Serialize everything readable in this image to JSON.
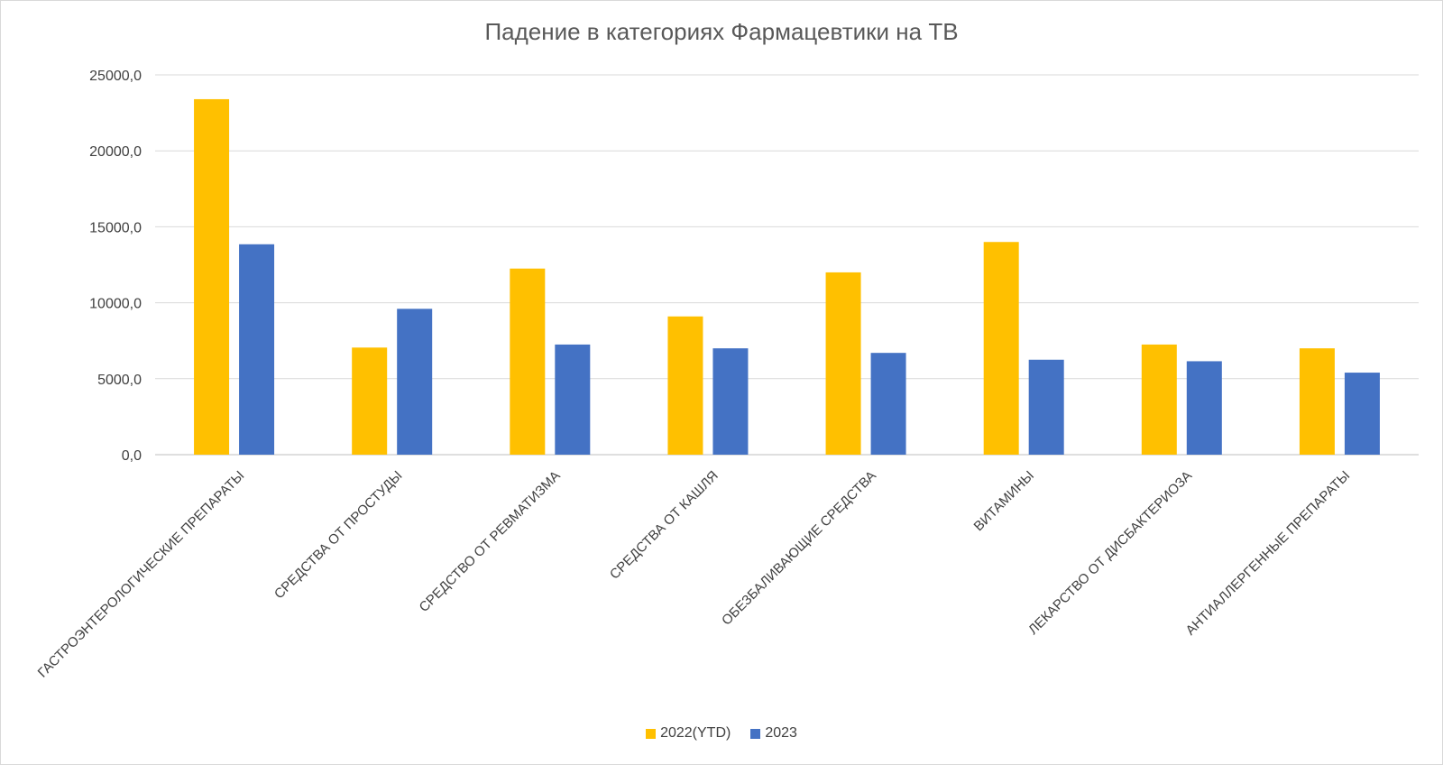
{
  "chart_data": {
    "type": "bar",
    "title": "Падение в категориях Фармацевтики на ТВ",
    "categories": [
      "ГАСТРОЭНТЕРОЛОГИЧЕСКИЕ ПРЕПАРАТЫ",
      "СРЕДСТВА ОТ ПРОСТУДЫ",
      "СРЕДСТВО ОТ РЕВМАТИЗМА",
      "СРЕДСТВА ОТ КАШЛЯ",
      "ОБЕЗБАЛИВАЮЩИЕ СРЕДСТВА",
      "ВИТАМИНЫ",
      "ЛЕКАРСТВО ОТ ДИСБАКТЕРИОЗА",
      "АНТИАЛЛЕРГЕННЫЕ ПРЕПАРАТЫ"
    ],
    "series": [
      {
        "name": "2022(YTD)",
        "color": "#FFC000",
        "values": [
          23400,
          7050,
          12250,
          9100,
          12000,
          14000,
          7250,
          7000
        ]
      },
      {
        "name": "2023",
        "color": "#4472C4",
        "values": [
          13850,
          9600,
          7250,
          7000,
          6700,
          6250,
          6150,
          5400
        ]
      }
    ],
    "ylim": [
      0,
      25000
    ],
    "yticks": [
      0,
      5000,
      10000,
      15000,
      20000,
      25000
    ],
    "ytick_labels": [
      "0,0",
      "5000,0",
      "10000,0",
      "15000,0",
      "20000,0",
      "25000,0"
    ],
    "grid": true,
    "legend_position": "bottom",
    "xlabel": "",
    "ylabel": ""
  }
}
